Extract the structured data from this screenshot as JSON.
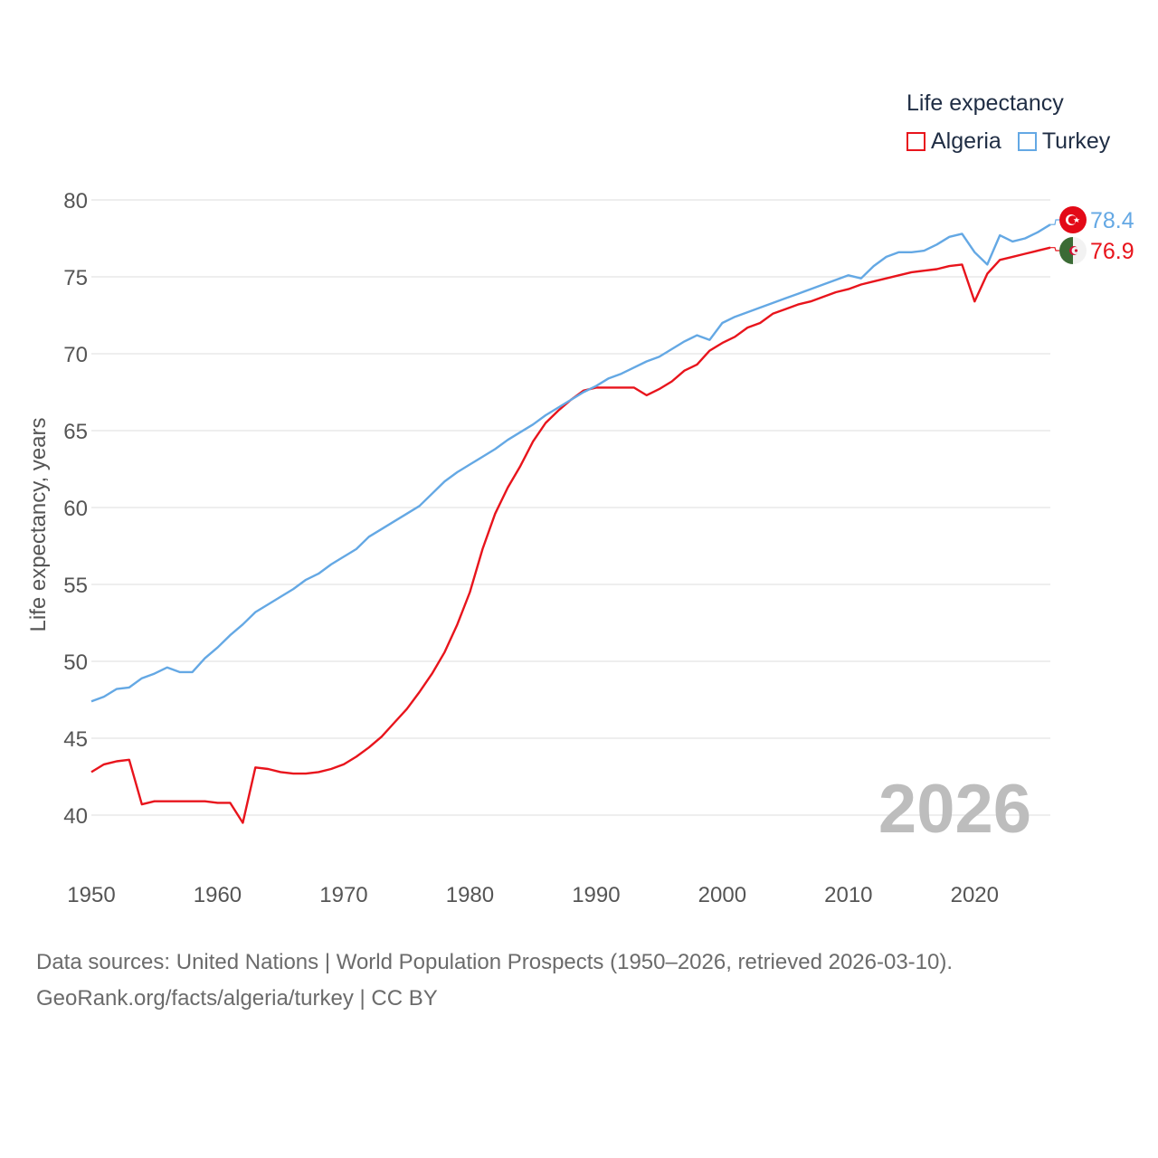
{
  "chart_data": {
    "type": "line",
    "title": "Life expectancy",
    "ylabel": "Life expectancy, years",
    "xlabel": "",
    "xlim": [
      1950,
      2026
    ],
    "ylim": [
      37,
      81
    ],
    "yticks": [
      40,
      45,
      50,
      55,
      60,
      65,
      70,
      75,
      80
    ],
    "xticks": [
      1950,
      1960,
      1970,
      1980,
      1990,
      2000,
      2010,
      2020
    ],
    "current_year": "2026",
    "legend": [
      {
        "name": "Algeria",
        "color": "#e8141c"
      },
      {
        "name": "Turkey",
        "color": "#64a8e4"
      }
    ],
    "series": [
      {
        "name": "Algeria",
        "color": "#e8141c",
        "end_label": "76.9",
        "flag": "algeria-flag",
        "x": [
          1950,
          1951,
          1952,
          1953,
          1954,
          1955,
          1956,
          1957,
          1958,
          1959,
          1960,
          1961,
          1962,
          1963,
          1964,
          1965,
          1966,
          1967,
          1968,
          1969,
          1970,
          1971,
          1972,
          1973,
          1974,
          1975,
          1976,
          1977,
          1978,
          1979,
          1980,
          1981,
          1982,
          1983,
          1984,
          1985,
          1986,
          1987,
          1988,
          1989,
          1990,
          1991,
          1992,
          1993,
          1994,
          1995,
          1996,
          1997,
          1998,
          1999,
          2000,
          2001,
          2002,
          2003,
          2004,
          2005,
          2006,
          2007,
          2008,
          2009,
          2010,
          2011,
          2012,
          2013,
          2014,
          2015,
          2016,
          2017,
          2018,
          2019,
          2020,
          2021,
          2022,
          2023,
          2024,
          2025,
          2026
        ],
        "values": [
          42.8,
          43.3,
          43.5,
          43.6,
          40.7,
          40.9,
          40.9,
          40.9,
          40.9,
          40.9,
          40.8,
          40.8,
          39.5,
          43.1,
          43.0,
          42.8,
          42.7,
          42.7,
          42.8,
          43.0,
          43.3,
          43.8,
          44.4,
          45.1,
          46.0,
          46.9,
          48.0,
          49.2,
          50.6,
          52.4,
          54.5,
          57.3,
          59.6,
          61.3,
          62.7,
          64.3,
          65.5,
          66.3,
          67.0,
          67.6,
          67.8,
          67.8,
          67.8,
          67.8,
          67.3,
          67.7,
          68.2,
          68.9,
          69.3,
          70.2,
          70.7,
          71.1,
          71.7,
          72.0,
          72.6,
          72.9,
          73.2,
          73.4,
          73.7,
          74.0,
          74.2,
          74.5,
          74.7,
          74.9,
          75.1,
          75.3,
          75.4,
          75.5,
          75.7,
          75.8,
          73.4,
          75.2,
          76.1,
          76.3,
          76.5,
          76.7,
          76.9
        ]
      },
      {
        "name": "Turkey",
        "color": "#64a8e4",
        "end_label": "78.4",
        "flag": "turkey-flag",
        "x": [
          1950,
          1951,
          1952,
          1953,
          1954,
          1955,
          1956,
          1957,
          1958,
          1959,
          1960,
          1961,
          1962,
          1963,
          1964,
          1965,
          1966,
          1967,
          1968,
          1969,
          1970,
          1971,
          1972,
          1973,
          1974,
          1975,
          1976,
          1977,
          1978,
          1979,
          1980,
          1981,
          1982,
          1983,
          1984,
          1985,
          1986,
          1987,
          1988,
          1989,
          1990,
          1991,
          1992,
          1993,
          1994,
          1995,
          1996,
          1997,
          1998,
          1999,
          2000,
          2001,
          2002,
          2003,
          2004,
          2005,
          2006,
          2007,
          2008,
          2009,
          2010,
          2011,
          2012,
          2013,
          2014,
          2015,
          2016,
          2017,
          2018,
          2019,
          2020,
          2021,
          2022,
          2023,
          2024,
          2025,
          2026
        ],
        "values": [
          47.4,
          47.7,
          48.2,
          48.3,
          48.9,
          49.2,
          49.6,
          49.3,
          49.3,
          50.2,
          50.9,
          51.7,
          52.4,
          53.2,
          53.7,
          54.2,
          54.7,
          55.3,
          55.7,
          56.3,
          56.8,
          57.3,
          58.1,
          58.6,
          59.1,
          59.6,
          60.1,
          60.9,
          61.7,
          62.3,
          62.8,
          63.3,
          63.8,
          64.4,
          64.9,
          65.4,
          66.0,
          66.5,
          67.0,
          67.5,
          67.9,
          68.4,
          68.7,
          69.1,
          69.5,
          69.8,
          70.3,
          70.8,
          71.2,
          70.9,
          72.0,
          72.4,
          72.7,
          73.0,
          73.3,
          73.6,
          73.9,
          74.2,
          74.5,
          74.8,
          75.1,
          74.9,
          75.7,
          76.3,
          76.6,
          76.6,
          76.7,
          77.1,
          77.6,
          77.8,
          76.6,
          75.8,
          77.7,
          77.3,
          77.5,
          77.9,
          78.4
        ]
      }
    ]
  },
  "footer": {
    "line1": "Data sources: United Nations | World Population Prospects (1950–2026, retrieved 2026-03-10).",
    "line2": "GeoRank.org/facts/algeria/turkey | CC BY"
  }
}
